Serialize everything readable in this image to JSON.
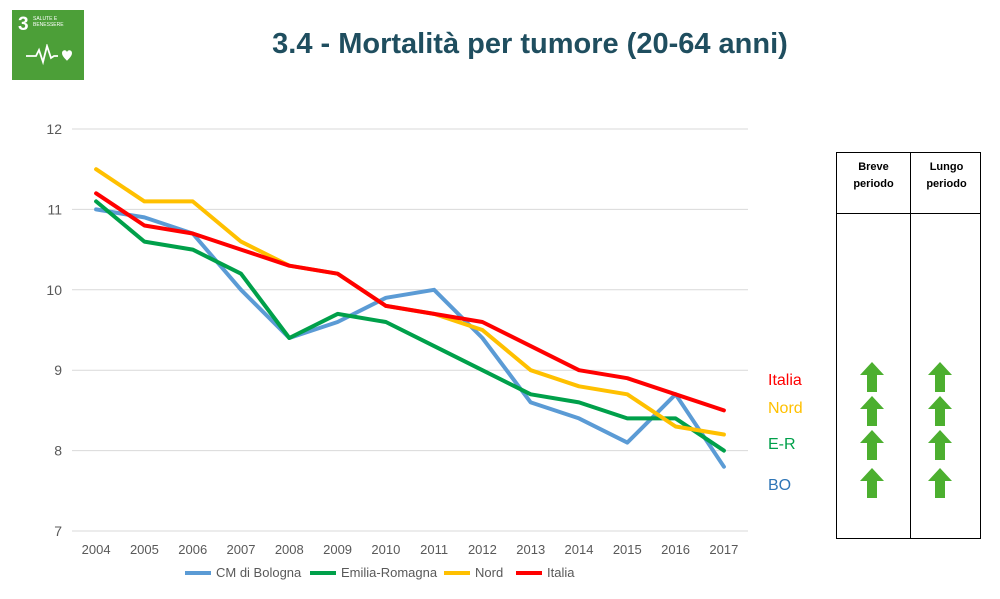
{
  "badge": {
    "number": "3",
    "label": "Salute e benessere",
    "icon": "heartbeat-icon"
  },
  "title": "3.4 - Mortalità per tumore (20-64 anni)",
  "chart_data": {
    "type": "line",
    "x": [
      "2004",
      "2005",
      "2006",
      "2007",
      "2008",
      "2009",
      "2010",
      "2011",
      "2012",
      "2013",
      "2014",
      "2015",
      "2016",
      "2017"
    ],
    "ylim": [
      7,
      12
    ],
    "yticks": [
      7,
      8,
      9,
      10,
      11,
      12
    ],
    "grid": true,
    "legend_position": "bottom",
    "series": [
      {
        "name": "CM di Bologna",
        "color": "#5b9bd5",
        "values": [
          11.0,
          10.9,
          10.7,
          10.0,
          9.4,
          9.6,
          9.9,
          10.0,
          9.4,
          8.6,
          8.4,
          8.1,
          8.7,
          7.8
        ]
      },
      {
        "name": "Emilia-Romagna",
        "color": "#00a04a",
        "values": [
          11.1,
          10.6,
          10.5,
          10.2,
          9.4,
          9.7,
          9.6,
          9.3,
          9.0,
          8.7,
          8.6,
          8.4,
          8.4,
          8.0
        ]
      },
      {
        "name": "Nord",
        "color": "#ffc000",
        "values": [
          11.5,
          11.1,
          11.1,
          10.6,
          10.3,
          10.2,
          9.8,
          9.7,
          9.5,
          9.0,
          8.8,
          8.7,
          8.3,
          8.2
        ]
      },
      {
        "name": "Italia",
        "color": "#ff0000",
        "values": [
          11.2,
          10.8,
          10.7,
          10.5,
          10.3,
          10.2,
          9.8,
          9.7,
          9.6,
          9.3,
          9.0,
          8.9,
          8.7,
          8.5
        ]
      }
    ]
  },
  "trend_table": {
    "headers": [
      "Breve periodo",
      "Lungo periodo"
    ],
    "rows": [
      {
        "label": "Italia",
        "color": "#ff0000",
        "short_term": "up-arrow-icon",
        "long_term": "up-arrow-icon"
      },
      {
        "label": "Nord",
        "color": "#ffc000",
        "short_term": "up-arrow-icon",
        "long_term": "up-arrow-icon"
      },
      {
        "label": "E-R",
        "color": "#00a04a",
        "short_term": "up-arrow-icon",
        "long_term": "up-arrow-icon"
      },
      {
        "label": "BO",
        "color": "#2e75b6",
        "short_term": "up-arrow-icon",
        "long_term": "up-arrow-icon"
      }
    ],
    "arrow_color": "#4caf2f"
  }
}
